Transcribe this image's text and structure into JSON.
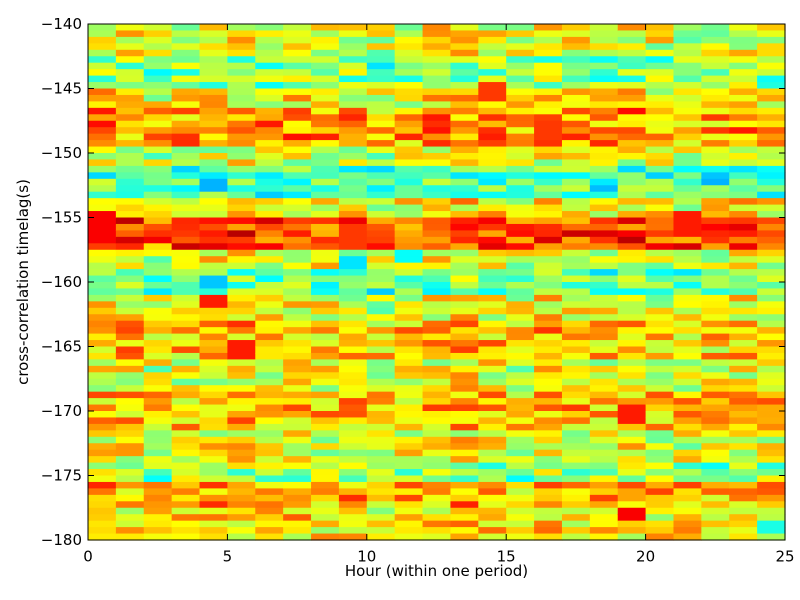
{
  "chart_data": {
    "type": "heatmap",
    "title": "",
    "xlabel": "Hour (within one period)",
    "ylabel": "cross-correlation timelag(s)",
    "xlim": [
      0,
      25
    ],
    "ylim": [
      -180,
      -140
    ],
    "x_ticks": [
      0,
      5,
      10,
      15,
      20,
      25
    ],
    "y_ticks": [
      -140,
      -145,
      -150,
      -155,
      -160,
      -165,
      -170,
      -175,
      -180
    ],
    "x_tick_labels": [
      "0",
      "5",
      "10",
      "15",
      "20",
      "25"
    ],
    "y_tick_labels": [
      "−140",
      "−145",
      "−150",
      "−155",
      "−160",
      "−165",
      "−170",
      "−175",
      "−180"
    ],
    "colormap": "jet",
    "color_range": [
      0.0,
      1.0
    ],
    "grid": false,
    "legend": "none",
    "columns": 25,
    "bin_width_hours": 1,
    "bin_height_s": 0.5,
    "row_bands_from_top": [
      [
        -140.0,
        -142.5,
        0.6
      ],
      [
        -142.5,
        -145.0,
        0.5
      ],
      [
        -145.0,
        -146.5,
        0.62
      ],
      [
        -146.5,
        -149.5,
        0.72
      ],
      [
        -149.5,
        -151.0,
        0.58
      ],
      [
        -151.0,
        -153.5,
        0.44
      ],
      [
        -153.5,
        -155.0,
        0.62
      ],
      [
        -155.0,
        -157.5,
        0.8
      ],
      [
        -157.5,
        -159.0,
        0.6
      ],
      [
        -159.0,
        -161.0,
        0.47
      ],
      [
        -161.0,
        -163.0,
        0.6
      ],
      [
        -163.0,
        -166.0,
        0.68
      ],
      [
        -166.0,
        -168.5,
        0.6
      ],
      [
        -168.5,
        -171.5,
        0.68
      ],
      [
        -171.5,
        -174.0,
        0.6
      ],
      [
        -174.0,
        -175.5,
        0.52
      ],
      [
        -175.5,
        -177.5,
        0.7
      ],
      [
        -177.5,
        -180.0,
        0.64
      ]
    ],
    "highlights": [
      {
        "x": 0.5,
        "y_from": -154.5,
        "y_to": -157.0,
        "value": 0.88
      },
      {
        "x": 4.5,
        "y_from": -152.0,
        "y_to": -153.0,
        "value": 0.3
      },
      {
        "x": 4.5,
        "y_from": -159.5,
        "y_to": -160.5,
        "value": 0.32
      },
      {
        "x": 4.5,
        "y_from": -161.0,
        "y_to": -162.0,
        "value": 0.85
      },
      {
        "x": 5.5,
        "y_from": -164.5,
        "y_to": -166.0,
        "value": 0.85
      },
      {
        "x": 9.5,
        "y_from": -155.5,
        "y_to": -157.5,
        "value": 0.82
      },
      {
        "x": 9.5,
        "y_from": -158.0,
        "y_to": -159.0,
        "value": 0.35
      },
      {
        "x": 11.5,
        "y_from": -157.5,
        "y_to": -158.5,
        "value": 0.38
      },
      {
        "x": 14.5,
        "y_from": -144.5,
        "y_to": -146.0,
        "value": 0.82
      },
      {
        "x": 16.5,
        "y_from": -147.5,
        "y_to": -149.0,
        "value": 0.82
      },
      {
        "x": 19.5,
        "y_from": -169.5,
        "y_to": -171.0,
        "value": 0.85
      },
      {
        "x": 19.5,
        "y_from": -177.5,
        "y_to": -178.5,
        "value": 0.88
      },
      {
        "x": 21.5,
        "y_from": -154.5,
        "y_to": -156.5,
        "value": 0.85
      },
      {
        "x": 24.5,
        "y_from": -178.5,
        "y_to": -179.5,
        "value": 0.4
      }
    ]
  }
}
